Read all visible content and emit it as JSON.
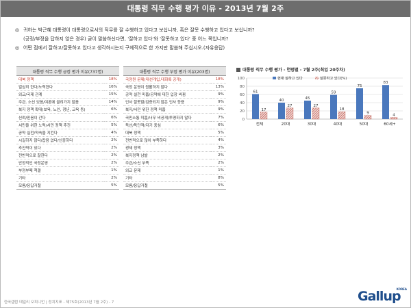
{
  "header": {
    "title": "대통령 직무 수행 평가 이유 - 2013년 7월 2주"
  },
  "question": {
    "lines": [
      {
        "bullet": "◎",
        "text": "귀하는 박근혜 대통령이 대통령으로서의 직무를 잘 수행하고 있다고 보십니까, 혹은 잘못 수행하고 있다고 보십니까?"
      },
      {
        "bullet": "",
        "text": "(긍정/부정을 답하지 않은 경우) 굳이 말씀하신다면, '잘하고 있다'와 '잘못하고 있다' 중 어느 쪽입니까?"
      },
      {
        "bullet": "◎",
        "text": "어떤 점에서 잘하고/잘못하고 있다고 생각하시는지 구체적으로 한 가지만 말씀해 주십시오.(자유응답)"
      }
    ]
  },
  "positive_table": {
    "header": "대통령 직무 수행 긍정 평가 이유(737명)",
    "rows": [
      {
        "label": "대북 정책",
        "value": "18%",
        "highlight": true
      },
      {
        "label": "열심히 한다/노력한다",
        "value": "16%",
        "highlight": false
      },
      {
        "label": "외교/국제 관계",
        "value": "15%",
        "highlight": false
      },
      {
        "label": "주관, 소신 있음/여론에 끌려가지 않음",
        "value": "14%",
        "highlight": false
      },
      {
        "label": "복지 정책 확대(보육, 노인, 청년, 교육 등)",
        "value": "6%",
        "highlight": false
      },
      {
        "label": "신뢰/믿음이 간다",
        "value": "6%",
        "highlight": false
      },
      {
        "label": "서민을 위한 노력/서민 정책 추진",
        "value": "5%",
        "highlight": false
      },
      {
        "label": "공약 실천/약속을 지킨다",
        "value": "4%",
        "highlight": false
      },
      {
        "label": "시길하지 않다/잡음 없다/신중하다",
        "value": "2%",
        "highlight": false
      },
      {
        "label": "추진력이 있다",
        "value": "2%",
        "highlight": false
      },
      {
        "label": "전반적으로 잘한다",
        "value": "2%",
        "highlight": false
      },
      {
        "label": "안정적인 국정운영",
        "value": "2%",
        "highlight": false
      },
      {
        "label": "부정부패 척결",
        "value": "1%",
        "highlight": false
      },
      {
        "label": "기타",
        "value": "2%",
        "highlight": false
      },
      {
        "label": "모름/응답거절",
        "value": "5%",
        "highlight": false
      }
    ]
  },
  "negative_table": {
    "header": "대통령 직무 수행 부정 평가 이유(203명)",
    "rows": [
      {
        "label": "국정원 문제(대선개입,대화록 공개)",
        "value": "18%",
        "highlight": true
      },
      {
        "label": "국정 운영이 원활하지 않다",
        "value": "13%",
        "highlight": false
      },
      {
        "label": "공약 실천 미흡/공약에 대한 입장 바뀜",
        "value": "9%",
        "highlight": false
      },
      {
        "label": "인사 잘못함/검증되지 않은 인사 등용",
        "value": "9%",
        "highlight": false
      },
      {
        "label": "복지/서민 위한 정책 미흡",
        "value": "9%",
        "highlight": false
      },
      {
        "label": "국민소통 미흡/너무 비공개/투명하지 않다",
        "value": "7%",
        "highlight": false
      },
      {
        "label": "독선/독단적/자기 중심",
        "value": "6%",
        "highlight": false
      },
      {
        "label": "대북 정책",
        "value": "5%",
        "highlight": false
      },
      {
        "label": "전반적으로 많이 부족하다",
        "value": "4%",
        "highlight": false
      },
      {
        "label": "경제 정책",
        "value": "3%",
        "highlight": false
      },
      {
        "label": "복지정책 남발",
        "value": "2%",
        "highlight": false
      },
      {
        "label": "주관/소신 부족",
        "value": "2%",
        "highlight": false
      },
      {
        "label": "외교 문제",
        "value": "1%",
        "highlight": false
      },
      {
        "label": "기타",
        "value": "8%",
        "highlight": false
      },
      {
        "label": "모름/응답거절",
        "value": "5%",
        "highlight": false
      }
    ]
  },
  "chart_data": {
    "type": "bar",
    "title": "대통령 직무 수행 평가 - 연령별 - 7월 2주(최임 20주차)",
    "categories": [
      "전체",
      "20대",
      "30대",
      "40대",
      "50대",
      "60세+"
    ],
    "series": [
      {
        "name": "현재 잘하고 있다",
        "values": [
          61,
          40,
          45,
          59,
          75,
          83
        ],
        "color": "#4a78bd"
      },
      {
        "name": "잘못하고 있다(%)",
        "values": [
          17,
          27,
          27,
          18,
          9,
          4
        ],
        "color": "#b03a2e",
        "pattern": "hatched"
      }
    ],
    "ylim": [
      0,
      100
    ],
    "yticks": [
      0,
      20,
      40,
      60,
      80,
      100
    ],
    "grid": true,
    "legend_position": "top"
  },
  "footer": {
    "text": "한국갤럽 데일리 오피니언 | 정치지표 - 제75호(2013년 7월 2주) - 7"
  },
  "logo": {
    "text": "Gallup",
    "sub": "KOREA"
  }
}
